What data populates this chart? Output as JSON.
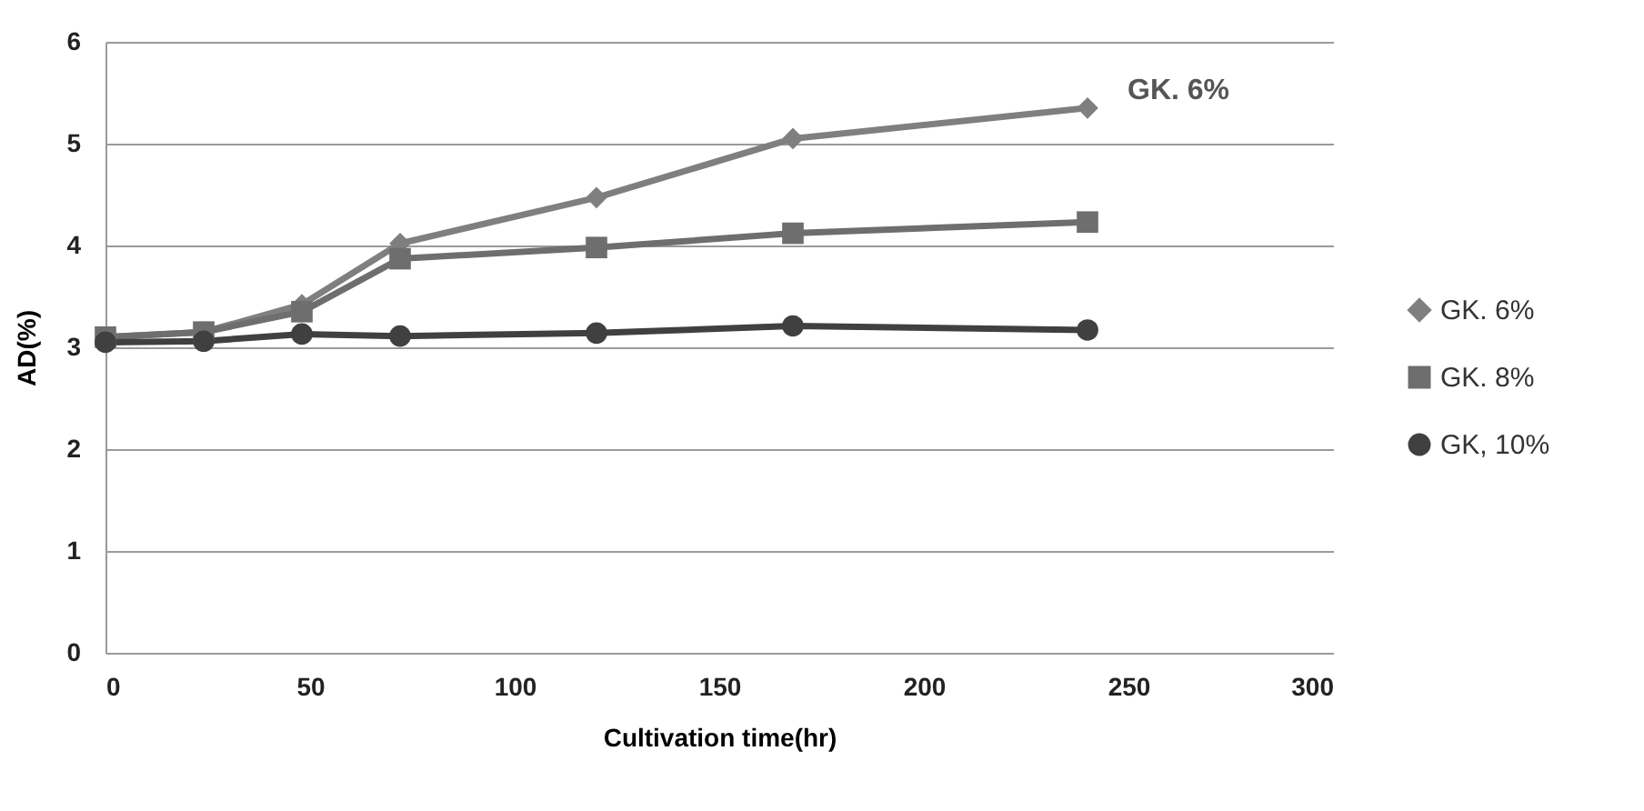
{
  "chart_data": {
    "type": "line",
    "xlabel": "Cultivation time(hr)",
    "ylabel": "AD(%)",
    "x": [
      0,
      24,
      48,
      72,
      120,
      168,
      240
    ],
    "series": [
      {
        "name": "GK. 6%",
        "color": "#7f7f7f",
        "marker": "diamond",
        "values": [
          3.1,
          3.15,
          3.42,
          4.02,
          4.47,
          5.05,
          5.35
        ]
      },
      {
        "name": "GK. 8%",
        "color": "#6e6e6e",
        "marker": "square",
        "values": [
          3.1,
          3.15,
          3.35,
          3.87,
          3.98,
          4.12,
          4.23
        ]
      },
      {
        "name": "GK, 10%",
        "color": "#404040",
        "marker": "circle",
        "values": [
          3.05,
          3.06,
          3.13,
          3.11,
          3.14,
          3.21,
          3.17
        ]
      }
    ],
    "annotations": [
      {
        "text": "GK. 6%",
        "x": 240,
        "y": 5.35
      }
    ],
    "xlim": [
      0,
      300
    ],
    "xticks": [
      0,
      50,
      100,
      150,
      200,
      250,
      300
    ],
    "ylim": [
      0,
      6
    ],
    "yticks": [
      0,
      1,
      2,
      3,
      4,
      5,
      6
    ],
    "grid": "y",
    "legend": "right"
  }
}
